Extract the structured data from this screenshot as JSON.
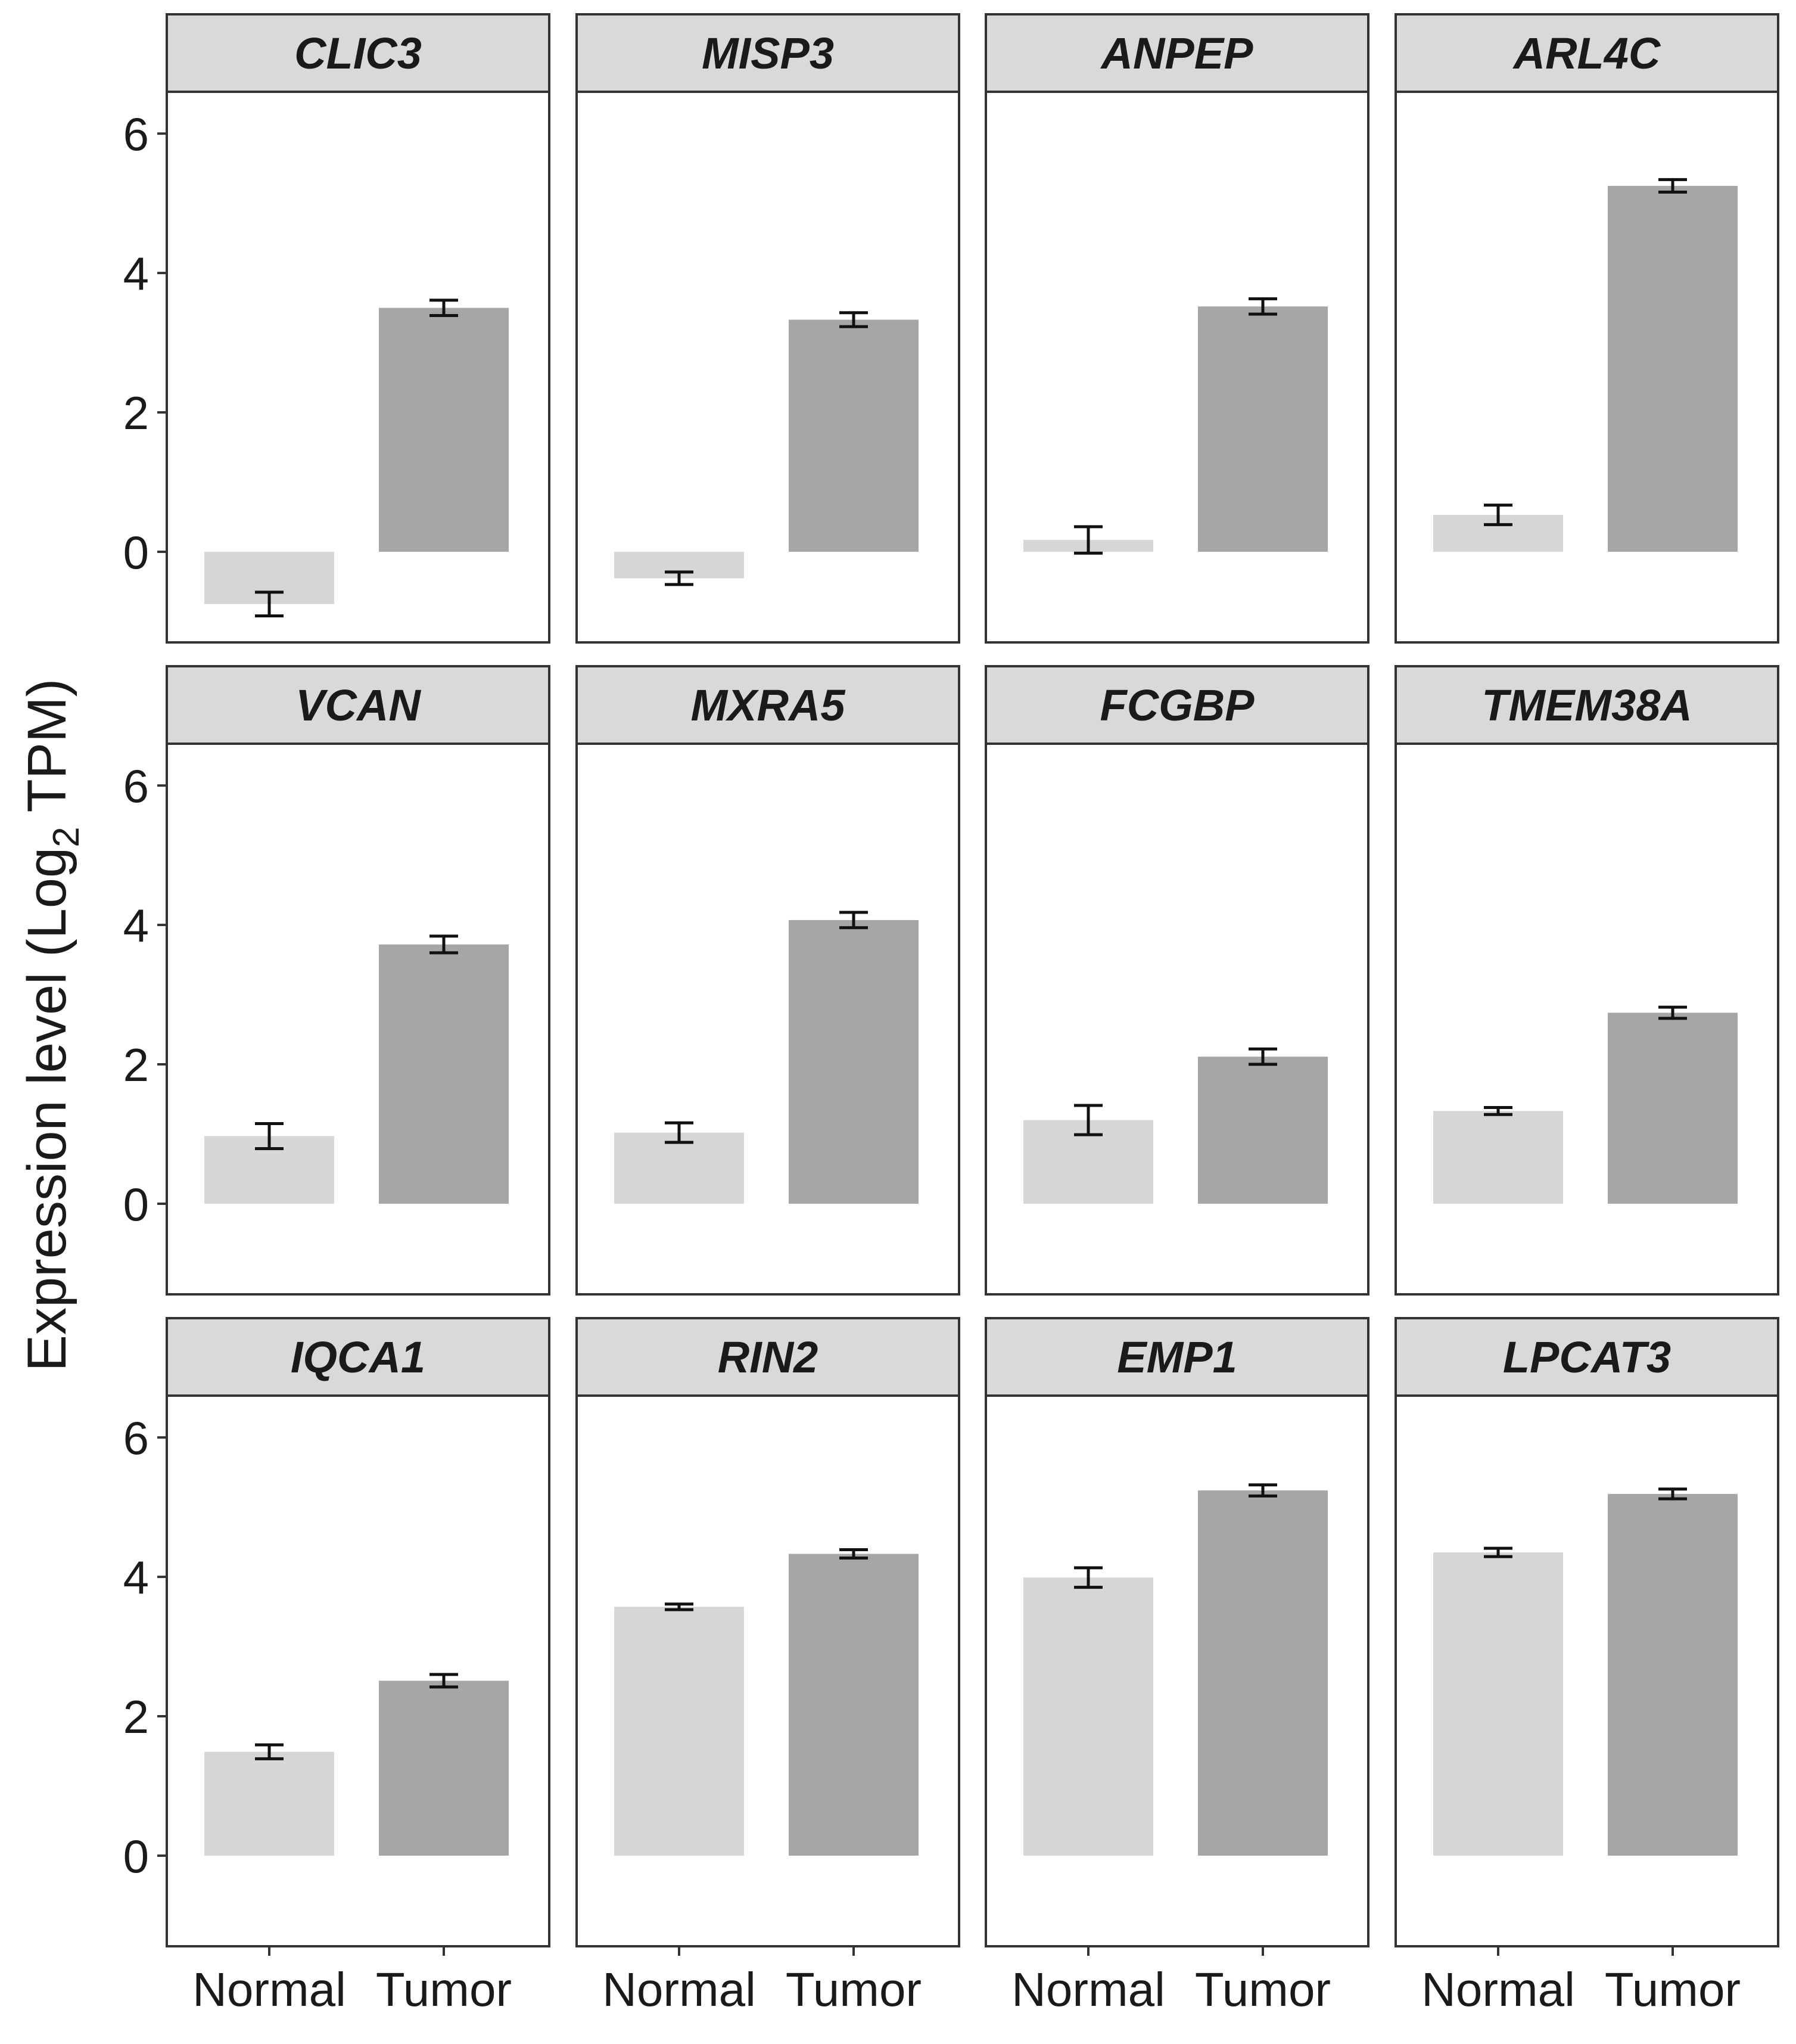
{
  "chart_data": {
    "type": "bar",
    "layout": "facet grid, 3 rows x 4 columns, shared axes",
    "ylabel": "Expression level (Log",
    "ylabel_sub": "2",
    "ylabel_suffix": " TPM)",
    "ylim": [
      -1.3,
      6.6
    ],
    "yticks": [
      0,
      2,
      4,
      6
    ],
    "categories": [
      "Normal",
      "Tumor"
    ],
    "colors": {
      "Normal": "#d6d6d6",
      "Tumor": "#a6a6a6",
      "strip_bg": "#d9d9d9",
      "frame": "#333333"
    },
    "panels": [
      {
        "gene": "CLIC3",
        "values": [
          -0.75,
          3.5
        ],
        "errors": [
          0.17,
          0.11
        ]
      },
      {
        "gene": "MISP3",
        "values": [
          -0.38,
          3.33
        ],
        "errors": [
          0.09,
          0.1
        ]
      },
      {
        "gene": "ANPEP",
        "values": [
          0.17,
          3.52
        ],
        "errors": [
          0.19,
          0.11
        ]
      },
      {
        "gene": "ARL4C",
        "values": [
          0.53,
          5.25
        ],
        "errors": [
          0.14,
          0.09
        ]
      },
      {
        "gene": "VCAN",
        "values": [
          0.97,
          3.72
        ],
        "errors": [
          0.18,
          0.12
        ]
      },
      {
        "gene": "MXRA5",
        "values": [
          1.02,
          4.07
        ],
        "errors": [
          0.14,
          0.11
        ]
      },
      {
        "gene": "FCGBP",
        "values": [
          1.2,
          2.11
        ],
        "errors": [
          0.21,
          0.11
        ]
      },
      {
        "gene": "TMEM38A",
        "values": [
          1.33,
          2.74
        ],
        "errors": [
          0.05,
          0.08
        ]
      },
      {
        "gene": "IQCA1",
        "values": [
          1.49,
          2.51
        ],
        "errors": [
          0.1,
          0.09
        ]
      },
      {
        "gene": "RIN2",
        "values": [
          3.57,
          4.33
        ],
        "errors": [
          0.04,
          0.06
        ]
      },
      {
        "gene": "EMP1",
        "values": [
          3.99,
          5.24
        ],
        "errors": [
          0.14,
          0.08
        ]
      },
      {
        "gene": "LPCAT3",
        "values": [
          4.35,
          5.19
        ],
        "errors": [
          0.06,
          0.07
        ]
      }
    ]
  }
}
